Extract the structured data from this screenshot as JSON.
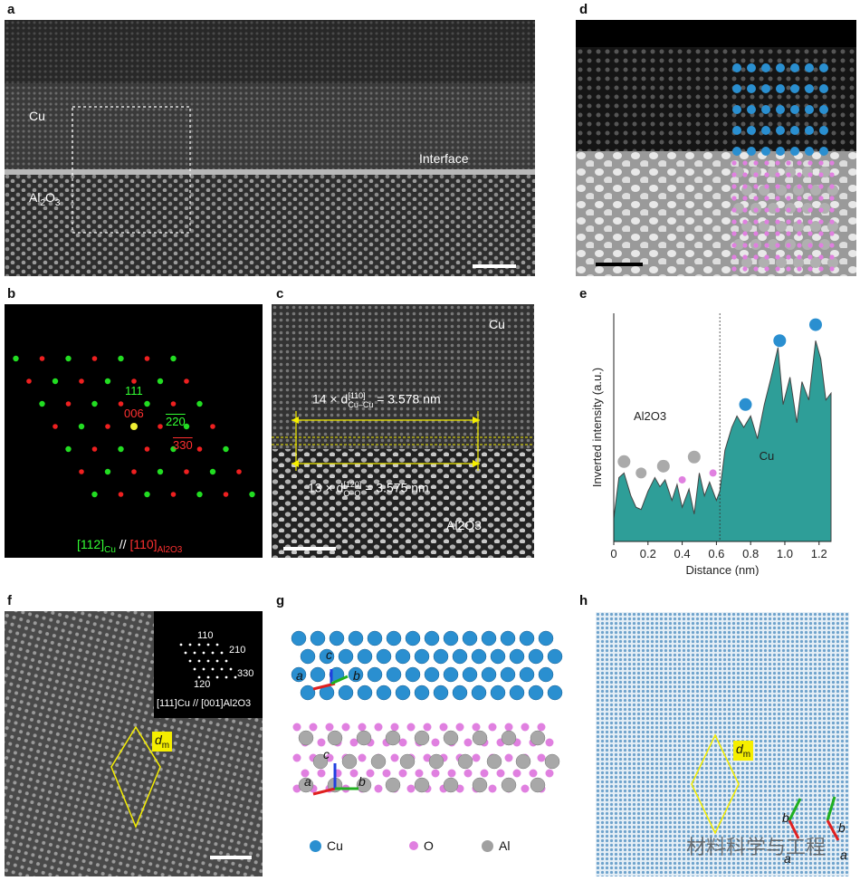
{
  "panels": {
    "a": {
      "letter": "a",
      "cu": "Cu",
      "al2o3_main": "Al",
      "al2o3_sub1": "2",
      "al2o3_mid": "O",
      "al2o3_sub2": "3",
      "interface": "Interface"
    },
    "b": {
      "letter": "b",
      "spot_111": "111",
      "spot_006": "006",
      "spot_220": "220",
      "spot_330": "330",
      "zone_cu": "[112]",
      "zone_cu_sub": "Cu",
      "zone_sep": "//",
      "zone_al": "[110]",
      "zone_al_sub": "Al2O3"
    },
    "c": {
      "letter": "c",
      "cu": "Cu",
      "al2o3": "Al2O3",
      "eq1_pre": "14 × d",
      "eq1_sup": "[110]",
      "eq1_sub": "Cu–Cu",
      "eq1_post": " = 3.578 nm",
      "eq2_pre": "13 × d",
      "eq2_sup": "[120]",
      "eq2_sub": "O–O",
      "eq2_post": " = 3.575 nm"
    },
    "d": {
      "letter": "d"
    },
    "e": {
      "letter": "e",
      "al2o3": "Al2O3",
      "cu": "Cu"
    },
    "f": {
      "letter": "f",
      "inset_110": "110",
      "inset_210": "210",
      "inset_330": "330",
      "inset_120": "120",
      "inset_zone": "[111]Cu // [001]Al2O3",
      "dm": "d",
      "dm_sub": "m"
    },
    "g": {
      "letter": "g",
      "axis_a": "a",
      "axis_b": "b",
      "axis_c": "c",
      "legend": [
        {
          "label": "Cu",
          "color": "#2a8fd0"
        },
        {
          "label": "O",
          "color": "#e080e0"
        },
        {
          "label": "Al",
          "color": "#a0a0a0"
        }
      ]
    },
    "h": {
      "letter": "h",
      "dm": "d",
      "dm_sub": "m",
      "axis_a": "a",
      "axis_b": "b",
      "watermark": "材料科学与工程"
    }
  },
  "chart_data": {
    "type": "area",
    "xlabel": "Distance (nm)",
    "ylabel": "Inverted intensity (a.u.)",
    "xlim": [
      0,
      1.27
    ],
    "xticks": [
      "0",
      "0.2",
      "0.4",
      "0.6",
      "0.8",
      "1.0",
      "1.2"
    ],
    "interface_x": 0.62,
    "fill_color": "#2e9e98",
    "x": [
      0.0,
      0.03,
      0.06,
      0.1,
      0.13,
      0.16,
      0.2,
      0.24,
      0.27,
      0.3,
      0.34,
      0.37,
      0.4,
      0.44,
      0.47,
      0.5,
      0.53,
      0.56,
      0.6,
      0.62,
      0.65,
      0.69,
      0.72,
      0.76,
      0.8,
      0.84,
      0.88,
      0.92,
      0.96,
      0.99,
      1.03,
      1.07,
      1.1,
      1.14,
      1.18,
      1.21,
      1.24,
      1.27
    ],
    "y": [
      0.1,
      0.28,
      0.3,
      0.2,
      0.15,
      0.14,
      0.22,
      0.28,
      0.24,
      0.27,
      0.18,
      0.25,
      0.15,
      0.23,
      0.12,
      0.3,
      0.2,
      0.26,
      0.18,
      0.22,
      0.4,
      0.5,
      0.55,
      0.5,
      0.55,
      0.45,
      0.6,
      0.72,
      0.85,
      0.6,
      0.72,
      0.52,
      0.7,
      0.62,
      0.88,
      0.8,
      0.62,
      0.65
    ]
  }
}
